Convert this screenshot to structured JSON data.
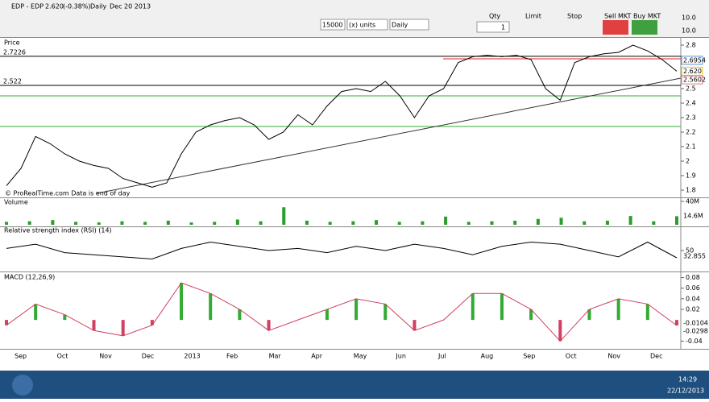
{
  "window": {
    "title": "EDP - EDP",
    "last": "2.620",
    "change": "(-0.38%)",
    "period": "Daily",
    "date": "Dec 20 2013"
  },
  "toolbar": {
    "quantity_field": "15000",
    "units": "(x) units",
    "timeframe": "Daily",
    "qty_label": "Qty",
    "qty_value": "1",
    "limit_label": "Limit",
    "stop_label": "Stop",
    "sell_label": "Sell MKT",
    "buy_label": "Buy MKT",
    "right_fields": [
      "10.0",
      "10.0"
    ]
  },
  "price_panel": {
    "title": "Price",
    "copyright": "© ProRealTime.com  Data is end of day",
    "ylim": [
      1.75,
      2.85
    ],
    "yticks": [
      2.8,
      2.7,
      2.6,
      2.5,
      2.4,
      2.3,
      2.2,
      2.1,
      2.0,
      1.9,
      1.8
    ],
    "levels": [
      {
        "value": 2.7226,
        "label": "2.7226",
        "color": "#000000"
      },
      {
        "value": 2.522,
        "label": "2.522",
        "color": "#000000"
      }
    ],
    "markers": [
      {
        "value": 2.6954,
        "label": "2.6954",
        "color": "#5b8fd8"
      },
      {
        "value": 2.62,
        "label": "2.620",
        "color": "#f0c000"
      },
      {
        "value": 2.5602,
        "label": "2.5602",
        "color": "#e08080"
      }
    ],
    "close": [
      1.83,
      1.95,
      2.17,
      2.12,
      2.05,
      2.0,
      1.97,
      1.95,
      1.88,
      1.85,
      1.82,
      1.85,
      2.05,
      2.2,
      2.25,
      2.28,
      2.3,
      2.25,
      2.15,
      2.2,
      2.32,
      2.25,
      2.38,
      2.48,
      2.5,
      2.48,
      2.55,
      2.45,
      2.3,
      2.45,
      2.5,
      2.68,
      2.72,
      2.73,
      2.72,
      2.73,
      2.7,
      2.5,
      2.42,
      2.68,
      2.72,
      2.74,
      2.75,
      2.8,
      2.76,
      2.7,
      2.62
    ],
    "color": "#000000"
  },
  "volume_panel": {
    "title": "Volume",
    "ylim": [
      0,
      40
    ],
    "yticks": [
      {
        "value": 40,
        "label": "40M"
      }
    ],
    "last_label": "14.6M",
    "values": [
      5,
      6,
      8,
      5,
      4,
      6,
      5,
      7,
      4,
      5,
      9,
      6,
      30,
      7,
      5,
      6,
      8,
      5,
      6,
      14,
      5,
      6,
      7,
      10,
      12,
      6,
      7,
      15,
      6,
      14.6
    ],
    "color": "#2a9d2a"
  },
  "rsi_panel": {
    "title": "Relative strength index (RSI) (14)",
    "ylim": [
      10,
      90
    ],
    "yticks": [
      50
    ],
    "last_label": "32.855",
    "values": [
      55,
      65,
      45,
      40,
      35,
      30,
      55,
      70,
      60,
      50,
      55,
      45,
      60,
      50,
      65,
      55,
      40,
      60,
      70,
      65,
      50,
      35,
      70,
      32.855
    ],
    "color": "#000000"
  },
  "macd_panel": {
    "title": "MACD (12,26,9)",
    "ylim": [
      -0.05,
      0.09
    ],
    "yticks": [
      0.08,
      0.06,
      0.04,
      0.02,
      -0.04
    ],
    "last_labels": [
      "-0.0104",
      "-0.0298"
    ],
    "values": [
      -0.01,
      0.03,
      0.01,
      -0.02,
      -0.03,
      -0.01,
      0.07,
      0.05,
      0.02,
      -0.02,
      0.0,
      0.02,
      0.04,
      0.03,
      -0.02,
      0.0,
      0.05,
      0.05,
      0.02,
      -0.04,
      0.02,
      0.04,
      0.03,
      -0.0104
    ],
    "color": "#d04060"
  },
  "x_axis": {
    "labels": [
      "Sep",
      "Oct",
      "Nov",
      "Dec",
      "2013",
      "Feb",
      "Mar",
      "Apr",
      "May",
      "Jun",
      "Jul",
      "Aug",
      "Sep",
      "Oct",
      "Nov",
      "Dec"
    ]
  },
  "taskbar": {
    "time": "14:29",
    "date": "22/12/2013"
  }
}
